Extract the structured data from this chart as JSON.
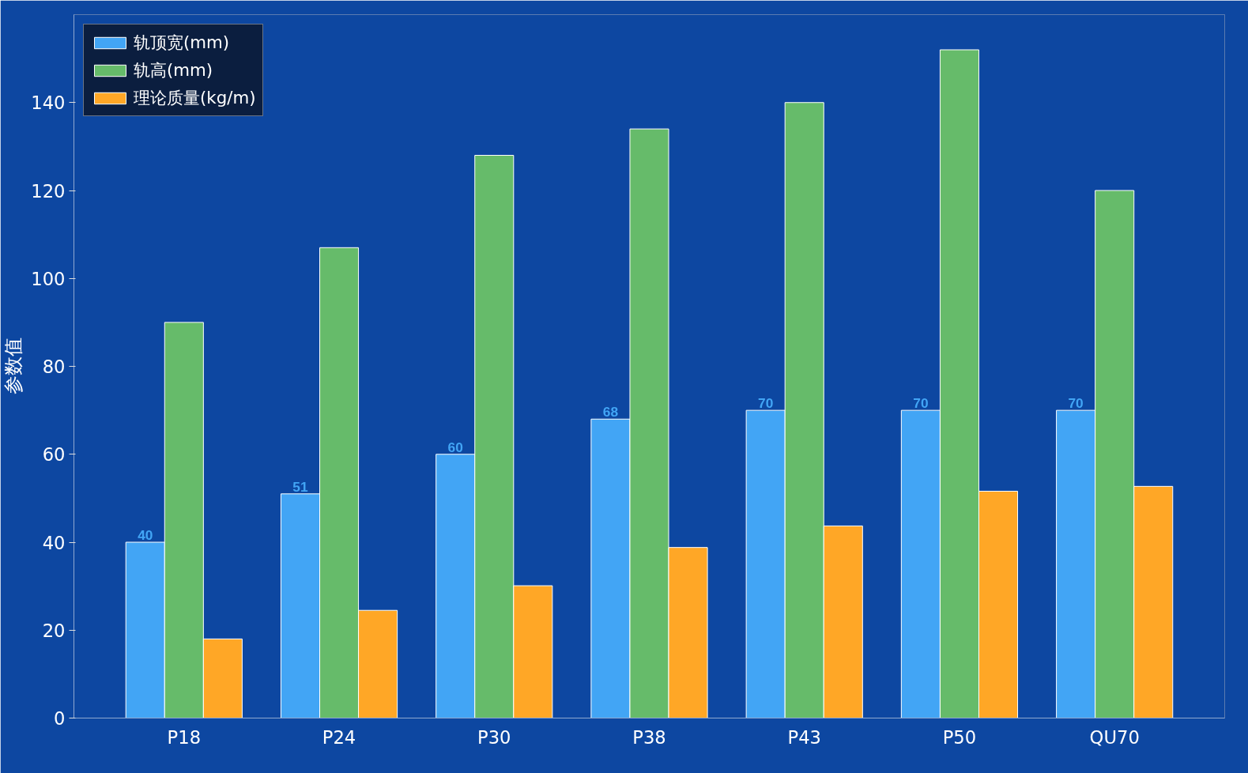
{
  "chart_data": {
    "type": "bar",
    "ylabel": "参数值",
    "categories": [
      "P18",
      "P24",
      "P30",
      "P38",
      "P43",
      "P50",
      "QU70"
    ],
    "series": [
      {
        "name": "轨顶宽(mm)",
        "color": "#42a5f5",
        "values": [
          40,
          51,
          60,
          68,
          70,
          70,
          70
        ],
        "value_labels": [
          "40",
          "51",
          "60",
          "68",
          "70",
          "70",
          "70"
        ]
      },
      {
        "name": "轨高(mm)",
        "color": "#66bb6a",
        "values": [
          90,
          107,
          128,
          134,
          140,
          152,
          120
        ]
      },
      {
        "name": "理论质量(kg/m)",
        "color": "#ffa726",
        "values": [
          18,
          24.5,
          30.1,
          38.8,
          43.7,
          51.6,
          52.7
        ]
      }
    ],
    "ylim": [
      0,
      160
    ],
    "yticks": [
      0,
      20,
      40,
      60,
      80,
      100,
      120,
      140
    ],
    "grid": false,
    "legend": "top left"
  }
}
